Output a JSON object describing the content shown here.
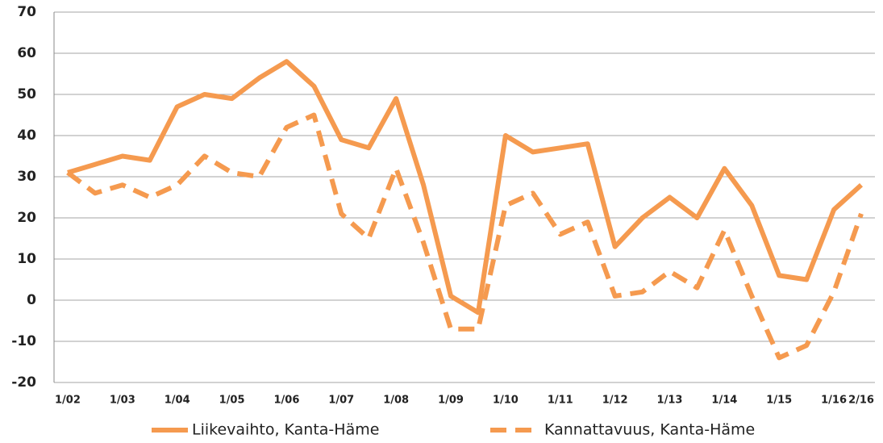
{
  "chart_data": {
    "type": "line",
    "categories": [
      "1/02",
      null,
      "1/03",
      null,
      "1/04",
      null,
      "1/05",
      null,
      "1/06",
      null,
      "1/07",
      null,
      "1/08",
      null,
      "1/09",
      null,
      "1/10",
      null,
      "1/11",
      null,
      "1/12",
      null,
      "1/13",
      null,
      "1/14",
      null,
      "1/15",
      null,
      "1/16",
      "2/16"
    ],
    "series": [
      {
        "name": "Liikevaihto, Kanta-Häme",
        "color": "#f59a4f",
        "dash": false,
        "values": [
          31,
          33,
          35,
          34,
          47,
          50,
          49,
          54,
          58,
          52,
          39,
          37,
          49,
          28,
          1,
          -3,
          40,
          36,
          37,
          38,
          13,
          20,
          25,
          20,
          32,
          23,
          6,
          5,
          22,
          28
        ]
      },
      {
        "name": "Kannattavuus, Kanta-Häme",
        "color": "#f59a4f",
        "dash": true,
        "values": [
          31,
          26,
          28,
          25,
          28,
          35,
          31,
          30,
          42,
          45,
          21,
          15,
          32,
          14,
          -7,
          -7,
          23,
          26,
          16,
          19,
          1,
          2,
          7,
          3,
          17,
          1,
          -14,
          -11,
          2,
          21
        ]
      }
    ],
    "ylim": [
      -20,
      70
    ],
    "yticks": [
      -20,
      -10,
      0,
      10,
      20,
      30,
      40,
      50,
      60,
      70
    ],
    "grid": true
  }
}
